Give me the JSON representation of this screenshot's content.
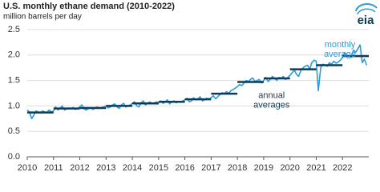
{
  "logo": "eia",
  "chart_data": {
    "type": "line",
    "title": "U.S. monthly ethane demand (2010-2022)",
    "subtitle": "million barrels per day",
    "xlim": [
      2010,
      2023
    ],
    "xticks": [
      2010,
      2011,
      2012,
      2013,
      2014,
      2015,
      2016,
      2017,
      2018,
      2019,
      2020,
      2021,
      2022
    ],
    "ylim": [
      0,
      2.5
    ],
    "yticks": [
      {
        "value": 0,
        "label": "0.0"
      },
      0.5,
      {
        "value": 1,
        "label": "1.0"
      },
      1.5,
      {
        "value": 2,
        "label": "2.0"
      },
      2.5
    ],
    "grid": true,
    "series": [
      {
        "color": "#2b9cd8",
        "x": [
          2010,
          2010.08,
          2010.17,
          2010.25,
          2010.33,
          2010.42,
          2010.5,
          2010.58,
          2010.67,
          2010.75,
          2010.83,
          2010.92,
          2011,
          2011.08,
          2011.17,
          2011.25,
          2011.33,
          2011.42,
          2011.5,
          2011.58,
          2011.67,
          2011.75,
          2011.83,
          2011.92,
          2012,
          2012.08,
          2012.17,
          2012.25,
          2012.33,
          2012.42,
          2012.5,
          2012.58,
          2012.67,
          2012.75,
          2012.83,
          2012.92,
          2013,
          2013.08,
          2013.17,
          2013.25,
          2013.33,
          2013.42,
          2013.5,
          2013.58,
          2013.67,
          2013.75,
          2013.83,
          2013.92,
          2014,
          2014.08,
          2014.17,
          2014.25,
          2014.33,
          2014.42,
          2014.5,
          2014.58,
          2014.67,
          2014.75,
          2014.83,
          2014.92,
          2015,
          2015.08,
          2015.17,
          2015.25,
          2015.33,
          2015.42,
          2015.5,
          2015.58,
          2015.67,
          2015.75,
          2015.83,
          2015.92,
          2016,
          2016.08,
          2016.17,
          2016.25,
          2016.33,
          2016.42,
          2016.5,
          2016.58,
          2016.67,
          2016.75,
          2016.83,
          2016.92,
          2017,
          2017.08,
          2017.17,
          2017.25,
          2017.33,
          2017.42,
          2017.5,
          2017.58,
          2017.67,
          2017.75,
          2017.83,
          2017.92,
          2018,
          2018.08,
          2018.17,
          2018.25,
          2018.33,
          2018.42,
          2018.5,
          2018.58,
          2018.67,
          2018.75,
          2018.83,
          2018.92,
          2019,
          2019.08,
          2019.17,
          2019.25,
          2019.33,
          2019.42,
          2019.5,
          2019.58,
          2019.67,
          2019.75,
          2019.83,
          2019.92,
          2020,
          2020.08,
          2020.17,
          2020.25,
          2020.33,
          2020.42,
          2020.5,
          2020.58,
          2020.67,
          2020.75,
          2020.83,
          2020.92,
          2021,
          2021.08,
          2021.17,
          2021.25,
          2021.33,
          2021.42,
          2021.5,
          2021.58,
          2021.67,
          2021.75,
          2021.83,
          2021.92,
          2022,
          2022.08,
          2022.17,
          2022.25,
          2022.33,
          2022.42,
          2022.5,
          2022.58,
          2022.67,
          2022.75,
          2022.83,
          2022.92
        ],
        "values": [
          0.92,
          0.88,
          0.75,
          0.82,
          0.9,
          0.88,
          0.86,
          0.9,
          0.88,
          0.87,
          0.92,
          0.88,
          0.9,
          0.98,
          0.92,
          0.95,
          1.0,
          0.92,
          0.94,
          0.96,
          0.95,
          0.97,
          0.93,
          0.95,
          0.98,
          1.02,
          0.94,
          0.92,
          0.95,
          0.97,
          0.93,
          0.96,
          0.98,
          0.95,
          0.97,
          0.98,
          1.0,
          0.96,
          0.98,
          1.02,
          1.04,
          0.98,
          0.95,
          1.02,
          1.05,
          0.98,
          1.0,
          1.02,
          1.05,
          1.08,
          1.0,
          0.98,
          1.06,
          1.1,
          1.02,
          1.05,
          1.08,
          1.04,
          1.06,
          1.08,
          1.06,
          1.1,
          1.05,
          1.08,
          1.12,
          1.04,
          1.08,
          1.1,
          1.06,
          1.09,
          1.07,
          1.1,
          1.12,
          1.15,
          1.08,
          1.1,
          1.16,
          1.12,
          1.14,
          1.18,
          1.1,
          1.12,
          1.15,
          1.14,
          1.16,
          1.2,
          1.14,
          1.18,
          1.22,
          1.26,
          1.24,
          1.28,
          1.25,
          1.3,
          1.32,
          1.35,
          1.38,
          1.42,
          1.4,
          1.45,
          1.5,
          1.48,
          1.52,
          1.55,
          1.48,
          1.5,
          1.52,
          1.45,
          1.5,
          1.56,
          1.48,
          1.52,
          1.58,
          1.54,
          1.5,
          1.56,
          1.55,
          1.58,
          1.52,
          1.56,
          1.6,
          1.65,
          1.7,
          1.62,
          1.58,
          1.7,
          1.75,
          1.78,
          1.8,
          1.72,
          1.85,
          1.9,
          1.88,
          1.3,
          1.75,
          1.82,
          1.8,
          1.78,
          1.85,
          1.82,
          1.88,
          1.84,
          1.86,
          1.9,
          1.95,
          2.05,
          2.0,
          1.98,
          1.96,
          2.1,
          2.05,
          2.12,
          2.2,
          1.85,
          1.92,
          1.8
        ]
      },
      {
        "color": "#0e3b57",
        "style": "annual-step",
        "x": [
          2010,
          2011,
          2012,
          2013,
          2014,
          2015,
          2016,
          2017,
          2018,
          2019,
          2020,
          2021,
          2022
        ],
        "values": [
          0.87,
          0.95,
          0.96,
          1.0,
          1.05,
          1.08,
          1.13,
          1.24,
          1.47,
          1.54,
          1.72,
          1.8,
          1.98
        ]
      }
    ],
    "annotations": [
      {
        "lines": [
          "monthly",
          "average"
        ],
        "color": "#2b9cd8",
        "x": 2021.9,
        "y": 2.2
      },
      {
        "lines": [
          "annual",
          "averages"
        ],
        "color": "#0e3b57",
        "x": 2019.3,
        "y": 1.2
      }
    ]
  }
}
